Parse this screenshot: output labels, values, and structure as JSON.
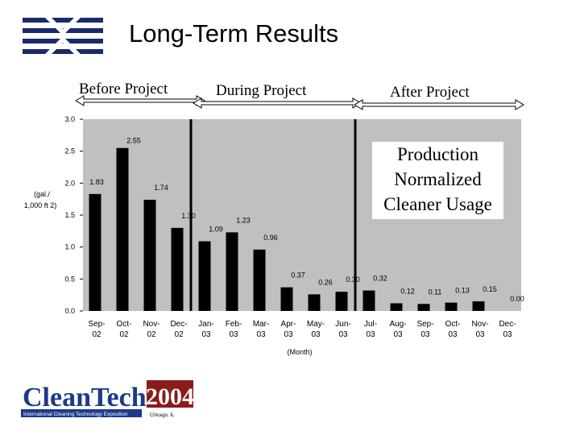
{
  "slide": {
    "title": "Long-Term Results",
    "phases": [
      "Before Project",
      "During Project",
      "After Project"
    ],
    "legend_text": [
      "Production",
      "Normalized",
      "Cleaner Usage"
    ],
    "footer_logo": {
      "brand": "CleanTech",
      "year": "2004",
      "tagline": "International Cleaning Technology Exposition",
      "location": "Chicago, IL"
    }
  },
  "chart_data": {
    "type": "bar",
    "categories": [
      "Sep-02",
      "Oct-02",
      "Nov-02",
      "Dec-02",
      "Jan-03",
      "Feb-03",
      "Mar-03",
      "Apr-03",
      "May-03",
      "Jun-03",
      "Jul-03",
      "Aug-03",
      "Sep-03",
      "Oct-03",
      "Nov-03",
      "Dec-03"
    ],
    "category_lines": [
      [
        "Sep-",
        "02"
      ],
      [
        "Oct-",
        "02"
      ],
      [
        "Nov-",
        "02"
      ],
      [
        "Dec-",
        "02"
      ],
      [
        "Jan-",
        "03"
      ],
      [
        "Feb-",
        "03"
      ],
      [
        "Mar-",
        "03"
      ],
      [
        "Apr-",
        "03"
      ],
      [
        "May-",
        "03"
      ],
      [
        "Jun-",
        "03"
      ],
      [
        "Jul-",
        "03"
      ],
      [
        "Aug-",
        "03"
      ],
      [
        "Sep-",
        "03"
      ],
      [
        "Oct-",
        "03"
      ],
      [
        "Nov-",
        "03"
      ],
      [
        "Dec-",
        "03"
      ]
    ],
    "values": [
      1.83,
      2.55,
      1.74,
      1.3,
      1.09,
      1.23,
      0.96,
      0.37,
      0.26,
      0.3,
      0.32,
      0.12,
      0.11,
      0.13,
      0.15,
      0.0
    ],
    "labels": [
      "1.83",
      "2.55",
      "1.74",
      "1.30",
      "1.09",
      "1.23",
      "0.96",
      "0.37",
      "0.26",
      "0.30",
      "0.32",
      "0.12",
      "0.11",
      "0.13",
      "0.15",
      "0.00"
    ],
    "yticks": [
      "0.0",
      "0.5",
      "1.0",
      "1.5",
      "2.0",
      "2.5",
      "3.0"
    ],
    "ylim": [
      0,
      3.0
    ],
    "ylabel_lines": [
      "(gal./",
      "1,000 ft 2)"
    ],
    "xlabel": "(Month)",
    "phase_dividers_after_category": [
      "Dec-02",
      "Jun-03"
    ],
    "plot_background": "#c0c0c0",
    "bar_color": "#000000",
    "grid": false
  }
}
